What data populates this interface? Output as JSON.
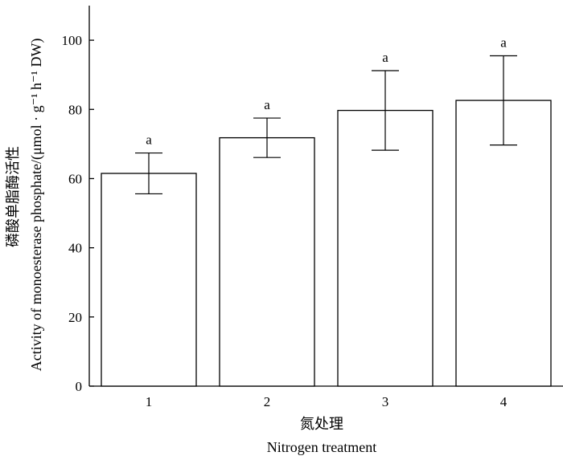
{
  "chart_data": {
    "type": "bar",
    "categories": [
      "1",
      "2",
      "3",
      "4"
    ],
    "values": [
      61.5,
      71.8,
      79.7,
      82.6
    ],
    "errors": [
      5.9,
      5.7,
      11.5,
      12.9
    ],
    "significance": [
      "a",
      "a",
      "a",
      "a"
    ],
    "title": "",
    "xlabel_cn": "氮处理",
    "xlabel_en": "Nitrogen treatment",
    "ylabel_cn": "磷酸单脂酶活性",
    "ylabel_en": "Activity of monoesterase phosphate/(μmol · g⁻¹ h⁻¹ DW)",
    "ylim": [
      0,
      110
    ],
    "yticks": [
      0,
      20,
      40,
      60,
      80,
      100
    ],
    "grid": false,
    "bar_color": "#ffffff",
    "edge_color": "#000000"
  }
}
